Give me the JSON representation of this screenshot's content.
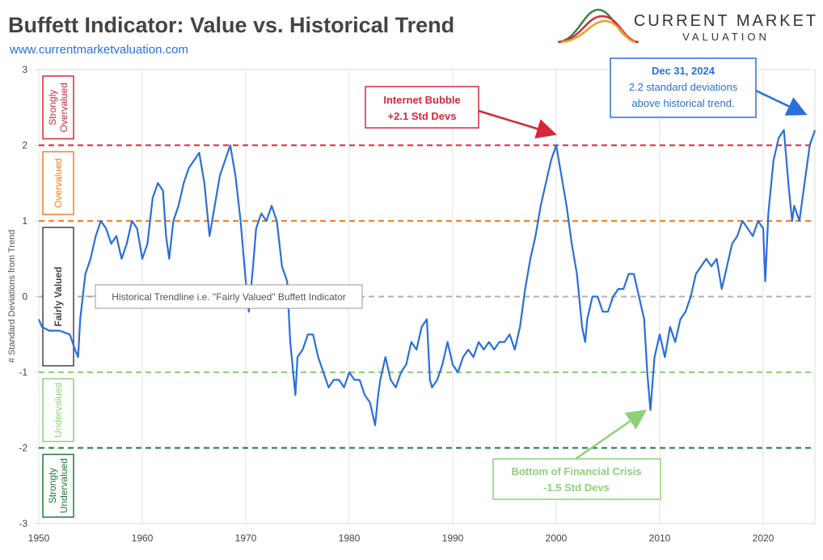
{
  "chart_data": {
    "type": "line",
    "title": "Buffett Indicator: Value vs. Historical Trend",
    "subtitle": "www.currentmarketvaluation.com",
    "logo": [
      "CURRENT MARKET",
      "VALUATION"
    ],
    "y_label": "# Standard Deviations from Trend",
    "xlim": [
      1950,
      2025
    ],
    "xticks": [
      1950,
      1960,
      1970,
      1980,
      1990,
      2000,
      2010,
      2020
    ],
    "ylim": [
      -3,
      3
    ],
    "yticks": [
      -3,
      -2,
      -1,
      0,
      1,
      2,
      3
    ],
    "reference_lines": [
      {
        "value": 2,
        "color": "#d62839"
      },
      {
        "value": 1,
        "color": "#f07f2a"
      },
      {
        "value": 0,
        "color": "#b0b0b0"
      },
      {
        "value": -1,
        "color": "#8fd07a"
      },
      {
        "value": -2,
        "color": "#1e7a3c"
      }
    ],
    "zones": [
      {
        "label": [
          "Strongly",
          "Overvalued"
        ],
        "range": [
          2,
          3
        ],
        "color": "#d62839"
      },
      {
        "label": [
          "Overvalued"
        ],
        "range": [
          1,
          2
        ],
        "color": "#f07f2a"
      },
      {
        "label": [
          "Fairly Valued"
        ],
        "range": [
          -1,
          1
        ],
        "color": "#444444"
      },
      {
        "label": [
          "Undervalued"
        ],
        "range": [
          -2,
          -1
        ],
        "color": "#8fd07a"
      },
      {
        "label": [
          "Strongly",
          "Undervalued"
        ],
        "range": [
          -3,
          -2
        ],
        "color": "#1e7a3c"
      }
    ],
    "annotations": {
      "trendline": "Historical Trendline i.e. \"Fairly Valued\" Buffett Indicator",
      "bubble": [
        "Internet Bubble",
        "+2.1 Std Devs"
      ],
      "crisis": [
        "Bottom of Financial Crisis",
        "-1.5 Std Devs"
      ],
      "latest": [
        "Dec 31, 2024",
        "2.2 standard deviations",
        "above historical trend."
      ]
    },
    "series": [
      {
        "name": "Buffett Indicator",
        "color": "#2a6fdb",
        "x": [
          1950,
          1950.3,
          1951,
          1952,
          1953,
          1953.5,
          1953.8,
          1954,
          1954.5,
          1955,
          1955.5,
          1956,
          1956.5,
          1957,
          1957.5,
          1958,
          1958.5,
          1959,
          1959.5,
          1960,
          1960.5,
          1961,
          1961.5,
          1962,
          1962.3,
          1962.6,
          1963,
          1963.5,
          1964,
          1964.5,
          1965,
          1965.5,
          1966,
          1966.5,
          1967,
          1967.5,
          1968,
          1968.5,
          1969,
          1969.5,
          1970,
          1970.3,
          1970.7,
          1971,
          1971.5,
          1972,
          1972.5,
          1973,
          1973.5,
          1974,
          1974.3,
          1974.8,
          1975,
          1975.5,
          1976,
          1976.5,
          1977,
          1977.5,
          1978,
          1978.5,
          1979,
          1979.5,
          1980,
          1980.5,
          1981,
          1981.5,
          1982,
          1982.5,
          1982.8,
          1983,
          1983.5,
          1984,
          1984.5,
          1985,
          1985.5,
          1986,
          1986.5,
          1987,
          1987.5,
          1987.8,
          1988,
          1988.5,
          1989,
          1989.5,
          1990,
          1990.5,
          1991,
          1991.5,
          1992,
          1992.5,
          1993,
          1993.5,
          1994,
          1994.5,
          1995,
          1995.5,
          1996,
          1996.5,
          1997,
          1997.5,
          1998,
          1998.5,
          1999,
          1999.5,
          2000,
          2000.5,
          2001,
          2001.5,
          2002,
          2002.5,
          2002.8,
          2003,
          2003.5,
          2004,
          2004.5,
          2005,
          2005.5,
          2006,
          2006.5,
          2007,
          2007.5,
          2008,
          2008.5,
          2008.8,
          2009.1,
          2009.5,
          2010,
          2010.5,
          2011,
          2011.5,
          2012,
          2012.5,
          2013,
          2013.5,
          2014,
          2014.5,
          2015,
          2015.5,
          2016,
          2016.5,
          2017,
          2017.5,
          2018,
          2018.5,
          2019,
          2019.5,
          2020,
          2020.2,
          2020.5,
          2021,
          2021.5,
          2022,
          2022.5,
          2022.8,
          2023,
          2023.5,
          2024,
          2024.5,
          2025
        ],
        "values": [
          -0.3,
          -0.4,
          -0.45,
          -0.45,
          -0.5,
          -0.7,
          -0.8,
          -0.3,
          0.3,
          0.5,
          0.8,
          1.0,
          0.9,
          0.7,
          0.8,
          0.5,
          0.7,
          1.0,
          0.9,
          0.5,
          0.7,
          1.3,
          1.5,
          1.4,
          0.8,
          0.5,
          1.0,
          1.2,
          1.5,
          1.7,
          1.8,
          1.9,
          1.5,
          0.8,
          1.2,
          1.6,
          1.8,
          2.0,
          1.6,
          1.0,
          0.2,
          -0.2,
          0.4,
          0.9,
          1.1,
          1.0,
          1.2,
          1.0,
          0.4,
          0.2,
          -0.6,
          -1.3,
          -0.8,
          -0.7,
          -0.5,
          -0.5,
          -0.8,
          -1.0,
          -1.2,
          -1.1,
          -1.1,
          -1.2,
          -1.0,
          -1.1,
          -1.1,
          -1.3,
          -1.4,
          -1.7,
          -1.3,
          -1.1,
          -0.8,
          -1.1,
          -1.2,
          -1.0,
          -0.9,
          -0.6,
          -0.7,
          -0.4,
          -0.3,
          -1.1,
          -1.2,
          -1.1,
          -0.9,
          -0.6,
          -0.9,
          -1.0,
          -0.8,
          -0.7,
          -0.8,
          -0.6,
          -0.7,
          -0.6,
          -0.7,
          -0.6,
          -0.6,
          -0.5,
          -0.7,
          -0.4,
          0.1,
          0.5,
          0.8,
          1.2,
          1.5,
          1.8,
          2.0,
          1.6,
          1.2,
          0.7,
          0.3,
          -0.4,
          -0.6,
          -0.3,
          0.0,
          0.0,
          -0.2,
          -0.2,
          0.0,
          0.1,
          0.1,
          0.3,
          0.3,
          0.0,
          -0.3,
          -1.0,
          -1.5,
          -0.8,
          -0.5,
          -0.8,
          -0.4,
          -0.6,
          -0.3,
          -0.2,
          0.0,
          0.3,
          0.4,
          0.5,
          0.4,
          0.5,
          0.1,
          0.4,
          0.7,
          0.8,
          1.0,
          0.9,
          0.8,
          1.0,
          0.9,
          0.2,
          1.1,
          1.8,
          2.1,
          2.2,
          1.4,
          1.0,
          1.2,
          1.0,
          1.5,
          2.0,
          2.2
        ]
      }
    ]
  }
}
